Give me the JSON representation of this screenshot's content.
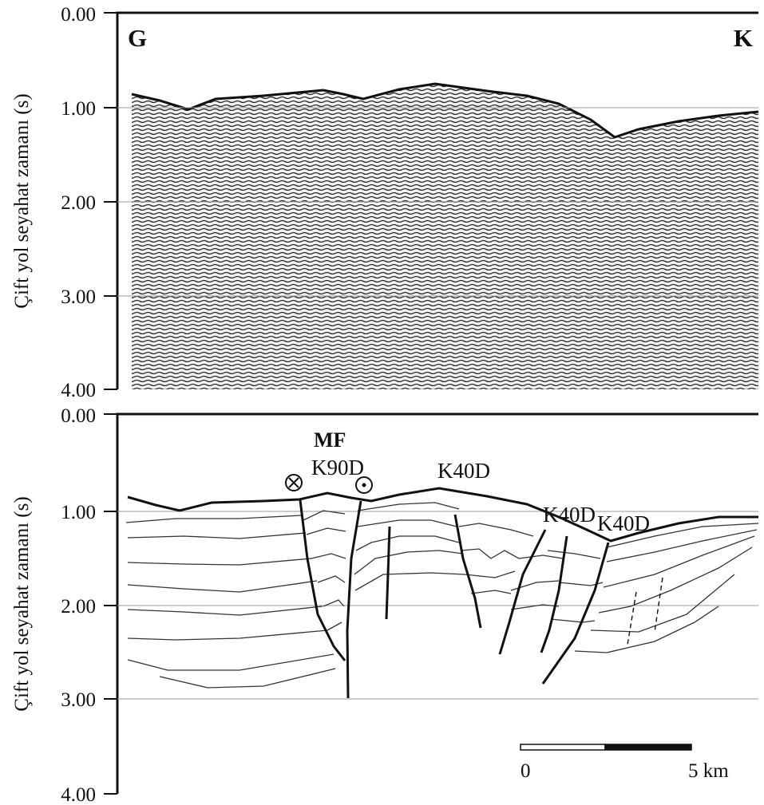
{
  "top_panel": {
    "y_label": "Çift yol seyahat zamanı (s)",
    "y_ticks": [
      "0.00",
      "1.00",
      "2.00",
      "3.00",
      "4.00"
    ],
    "left_label": "G",
    "right_label": "K"
  },
  "bottom_panel": {
    "y_label": "Çift yol seyahat zamanı (s)",
    "y_ticks": [
      "0.00",
      "1.00",
      "2.00",
      "3.00",
      "4.00"
    ],
    "fault_zone_label": "MF",
    "fault_labels": [
      "K90D",
      "K40D",
      "K40D",
      "K40D"
    ],
    "strike_slip_symbols": [
      "into-page-symbol",
      "out-of-page-symbol"
    ],
    "scale_bar": {
      "start_label": "0",
      "end_label": "5 km"
    }
  },
  "colors": {
    "ink": "#111111",
    "grid": "#9a9a9a",
    "seismic_fill": "#e6e6e6"
  }
}
